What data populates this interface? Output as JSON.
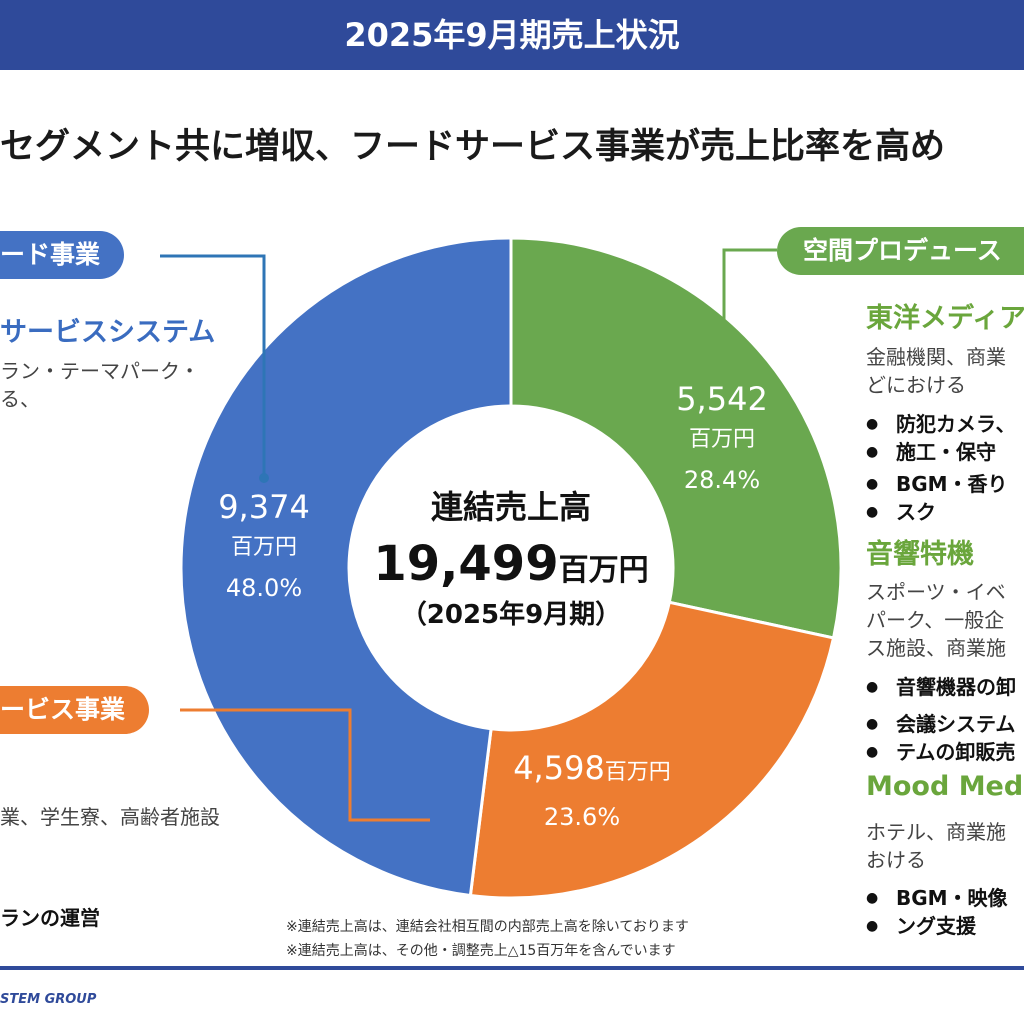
{
  "header": {
    "title": "2025年9月期売上状況"
  },
  "subtitle": "セグメント共に増収、フードサービス事業が売上比率を高め",
  "chart_data": {
    "type": "pie",
    "variant": "donut",
    "center": {
      "line1": "連結売上高",
      "value": "19,499",
      "unit": "百万円",
      "period": "（2025年9月期）"
    },
    "slices": [
      {
        "segment": "space",
        "value": 5542,
        "value_label": "5,542",
        "unit": "百万円",
        "percent": 28.4,
        "percent_label": "28.4%",
        "color": "#6aa84f"
      },
      {
        "segment": "food",
        "value": 4598,
        "value_label": "4,598",
        "unit": "百万円",
        "percent": 23.6,
        "percent_label": "23.6%",
        "color": "#ed7d31"
      },
      {
        "segment": "lifestyle",
        "value": 9374,
        "value_label": "9,374",
        "unit": "百万円",
        "percent": 48.0,
        "percent_label": "48.0%",
        "color": "#4472c4"
      }
    ]
  },
  "left": {
    "pill1": "ード事業",
    "heading1": "サービスシステム",
    "desc1a": "ラン・テーマパーク・",
    "desc1b": "る、",
    "pill2": "ービス事業",
    "desc2": "業、学生寮、高齢者施設",
    "bullet2": "ランの運営"
  },
  "right": {
    "pill": "空間プロデュース",
    "heading1": "東洋メディア",
    "desc1a": "金融機関、商業",
    "desc1b": "どにおける",
    "b1a": "防犯カメラ、",
    "b1b": "施工・保守",
    "b2a": "BGM・香り",
    "b2b": "スク",
    "heading2": "音響特機",
    "desc2a": "スポーツ・イベ",
    "desc2b": "パーク、一般企",
    "desc2c": "ス施設、商業施",
    "b3": "音響機器の卸",
    "b4a": "会議システム",
    "b4b": "テムの卸販売",
    "heading3": "Mood Medi",
    "desc3a": "ホテル、商業施",
    "desc3b": "おける",
    "b5a": "BGM・映像",
    "b5b": "ング支援"
  },
  "notes": {
    "n1": "※連結売上高は、連結会社相互間の内部売上高を除いております",
    "n2": "※連結売上高は、その他・調整売上△15百万年を含んでいます"
  },
  "footer": {
    "logo": "STEM GROUP"
  }
}
